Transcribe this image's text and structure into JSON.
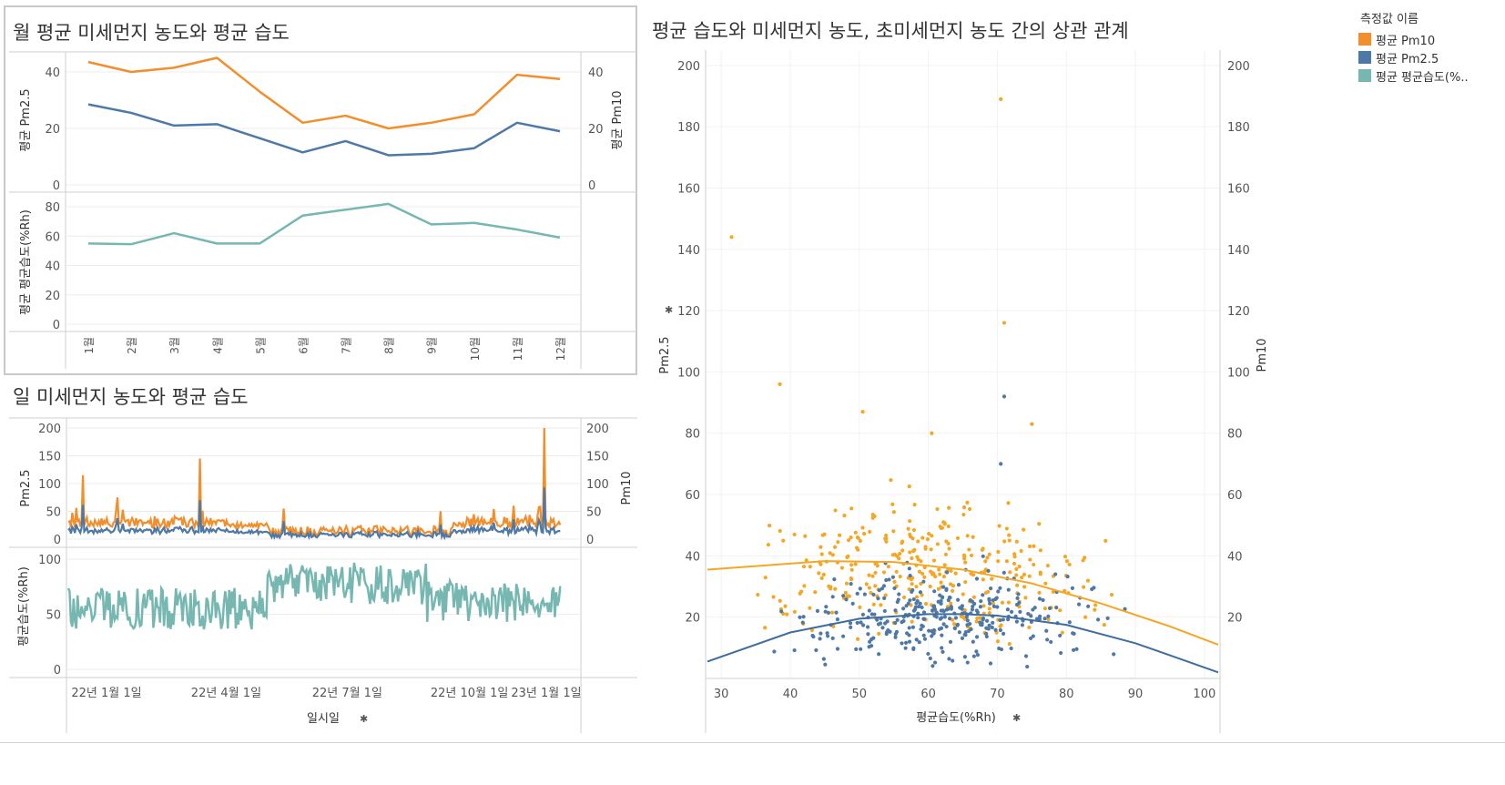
{
  "monthly": {
    "title": "월 평균 미세먼지 농도와 평균 습도",
    "y_top_left_label": "평균 Pm2.5",
    "y_top_right_label": "평균 Pm10",
    "y_bottom_label": "평균 평균습도(%Rh)"
  },
  "daily": {
    "title": "일 미세먼지 농도와 평균 습도",
    "y_top_left_label": "Pm2.5",
    "y_top_right_label": "Pm10",
    "y_bottom_label": "평균습도(%Rh)",
    "x_label": "일시일"
  },
  "scatter": {
    "title": "평균 습도와 미세먼지 농도, 초미세먼지 농도 간의 상관 관계",
    "y_left_label": "Pm2.5",
    "y_right_label": "Pm10",
    "x_label": "평균습도(%Rh)"
  },
  "legend": {
    "title": "측정값 이름",
    "items": [
      {
        "label": "평균 Pm10",
        "color": "#f28e2b"
      },
      {
        "label": "평균 Pm2.5",
        "color": "#4e79a7"
      },
      {
        "label": "평균 평균습도(%..",
        "color": "#76b7b2"
      }
    ]
  },
  "chart_data": [
    {
      "type": "line",
      "title": "월 평균 미세먼지 농도와 평균 습도",
      "categories": [
        "1월",
        "2월",
        "3월",
        "4월",
        "5월",
        "6월",
        "7월",
        "8월",
        "9월",
        "10월",
        "11월",
        "12월"
      ],
      "series": [
        {
          "name": "평균 Pm10",
          "color": "#f28e2b",
          "values": [
            43.5,
            40,
            41.5,
            45,
            33,
            22,
            24.5,
            20,
            22,
            25,
            39,
            37.5
          ]
        },
        {
          "name": "평균 Pm2.5",
          "color": "#4e79a7",
          "values": [
            28.5,
            25.5,
            21,
            21.5,
            16.5,
            11.5,
            15.5,
            10.5,
            11,
            13,
            22,
            19
          ]
        }
      ],
      "y_ticks": [
        0,
        20,
        40
      ],
      "y_right_ticks": [
        0,
        20,
        40
      ],
      "ylim": [
        0,
        50
      ]
    },
    {
      "type": "line",
      "title": "월 평균 미세먼지 농도와 평균 습도",
      "categories": [
        "1월",
        "2월",
        "3월",
        "4월",
        "5월",
        "6월",
        "7월",
        "8월",
        "9월",
        "10월",
        "11월",
        "12월"
      ],
      "series": [
        {
          "name": "평균 평균습도(%..",
          "color": "#76b7b2",
          "values": [
            55,
            54.5,
            62,
            55,
            55,
            74,
            78,
            82,
            68,
            69,
            64.5,
            59
          ]
        }
      ],
      "y_ticks": [
        0,
        20,
        40,
        60,
        80
      ],
      "ylim": [
        0,
        85
      ]
    },
    {
      "type": "line",
      "title": "일 미세먼지 농도와 평균 습도",
      "x_ticks": [
        "22년 1월 1일",
        "22년 4월 1일",
        "22년 7월 1일",
        "22년 10월 1일",
        "23년 1월 1일"
      ],
      "y_ticks": [
        0,
        50,
        100,
        150,
        200
      ],
      "y_right_ticks": [
        0,
        50,
        100,
        150,
        200
      ],
      "pm10_spikes": [
        {
          "date": "22년 1월 12일",
          "value": 115
        },
        {
          "date": "22년 4월 10일",
          "value": 145
        },
        {
          "date": "22년 12월 25일",
          "value": 200
        }
      ],
      "humidity_ticks": [
        0,
        50,
        100
      ],
      "series_names": [
        "Pm10",
        "Pm2.5",
        "평균습도(%Rh)"
      ]
    },
    {
      "type": "scatter",
      "title": "평균 습도와 미세먼지 농도, 초미세먼지 농도 간의 상관 관계",
      "xlabel": "평균습도(%Rh)",
      "ylabel": "Pm2.5",
      "y2label": "Pm10",
      "x_ticks": [
        30,
        40,
        50,
        60,
        70,
        80,
        90,
        100
      ],
      "y_ticks": [
        20,
        40,
        60,
        80,
        100,
        120,
        140,
        160,
        180,
        200
      ],
      "xlim": [
        28,
        102
      ],
      "ylim": [
        0,
        205
      ],
      "outliers_pm10": [
        {
          "x": 31.5,
          "y": 144
        },
        {
          "x": 38.5,
          "y": 96
        },
        {
          "x": 50.5,
          "y": 87
        },
        {
          "x": 60.5,
          "y": 80
        },
        {
          "x": 70.5,
          "y": 189
        },
        {
          "x": 71,
          "y": 116
        },
        {
          "x": 75,
          "y": 83
        }
      ],
      "outliers_pm25": [
        {
          "x": 71,
          "y": 92
        },
        {
          "x": 70.5,
          "y": 70
        }
      ],
      "trend_pm10": {
        "x": [
          28,
          45,
          55,
          65,
          75,
          85,
          95,
          102
        ],
        "y": [
          35.5,
          38.3,
          38,
          35.5,
          31,
          24.5,
          17,
          11
        ]
      },
      "trend_pm25": {
        "x": [
          28,
          40,
          50,
          60,
          65,
          70,
          80,
          90,
          102
        ],
        "y": [
          5.5,
          15,
          19.5,
          21,
          21,
          20.5,
          17.5,
          11.5,
          2
        ]
      }
    }
  ]
}
